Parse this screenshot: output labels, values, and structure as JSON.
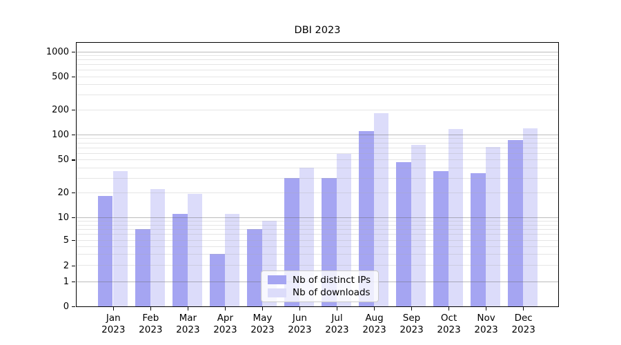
{
  "title": "DBI 2023",
  "chart_data": {
    "type": "bar",
    "title": "DBI 2023",
    "categories": [
      "Jan 2023",
      "Feb 2023",
      "Mar 2023",
      "Apr 2023",
      "May 2023",
      "Jun 2023",
      "Jul 2023",
      "Aug 2023",
      "Sep 2023",
      "Oct 2023",
      "Nov 2023",
      "Dec 2023"
    ],
    "x_tick_labels": [
      {
        "month": "Jan",
        "year": "2023"
      },
      {
        "month": "Feb",
        "year": "2023"
      },
      {
        "month": "Mar",
        "year": "2023"
      },
      {
        "month": "Apr",
        "year": "2023"
      },
      {
        "month": "May",
        "year": "2023"
      },
      {
        "month": "Jun",
        "year": "2023"
      },
      {
        "month": "Jul",
        "year": "2023"
      },
      {
        "month": "Aug",
        "year": "2023"
      },
      {
        "month": "Sep",
        "year": "2023"
      },
      {
        "month": "Oct",
        "year": "2023"
      },
      {
        "month": "Nov",
        "year": "2023"
      },
      {
        "month": "Dec",
        "year": "2023"
      }
    ],
    "series": [
      {
        "name": "Nb of distinct IPs",
        "color": "#a5a5f2",
        "values": [
          18,
          7,
          11,
          3,
          7,
          30,
          30,
          110,
          46,
          36,
          34,
          85
        ]
      },
      {
        "name": "Nb of downloads",
        "color": "#dcdcfa",
        "values": [
          36,
          22,
          19,
          11,
          9,
          40,
          58,
          180,
          75,
          115,
          70,
          118
        ]
      }
    ],
    "xlabel": "",
    "ylabel": "",
    "y_axis": {
      "scale": "symlog",
      "tick_values": [
        0,
        1,
        2,
        5,
        10,
        20,
        50,
        100,
        200,
        500,
        1000
      ],
      "tick_labels": [
        "0",
        "1",
        "2",
        "5",
        "10",
        "20",
        "50",
        "100",
        "200",
        "500",
        "1000"
      ],
      "ylim": [
        0,
        1300
      ],
      "major_grid_values": [
        1,
        10,
        100,
        1000
      ],
      "minor_grid_values": [
        2,
        3,
        4,
        5,
        6,
        7,
        8,
        9,
        20,
        30,
        40,
        50,
        60,
        70,
        80,
        90,
        200,
        300,
        400,
        500,
        600,
        700,
        800,
        900
      ]
    },
    "grid": "on",
    "legend_position": "lower center"
  },
  "colors": {
    "series_dark": "#a5a5f2",
    "series_light": "#dcdcfa",
    "major_grid": "#a9a9a9",
    "minor_grid": "#e2e2e2",
    "axis": "#000000",
    "background": "#ffffff"
  }
}
